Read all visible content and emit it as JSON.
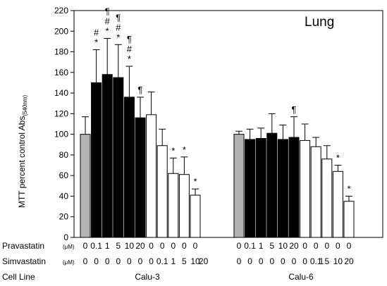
{
  "chart_data": {
    "type": "bar",
    "title": "Lung",
    "ylabel": "MTT percent control Abs",
    "ylabel_sub": "(540nm)",
    "ylim": [
      0,
      220
    ],
    "yticks": [
      0,
      20,
      40,
      60,
      80,
      100,
      120,
      140,
      160,
      180,
      200,
      220
    ],
    "grid": false,
    "row_labels": {
      "pravastatin": "Pravastatin",
      "simvastatin": "Simvastatin",
      "unit": "(μM)",
      "cell_line": "Cell Line"
    },
    "groups": [
      {
        "cell_line": "Calu-3",
        "bars": [
          {
            "pravastatin": "0",
            "simvastatin": "0",
            "value": 100,
            "error": 17,
            "kind": "control",
            "marks": []
          },
          {
            "pravastatin": "0.1",
            "simvastatin": "0",
            "value": 150,
            "error": 32,
            "kind": "pravastatin",
            "marks": [
              "#",
              "*"
            ]
          },
          {
            "pravastatin": "1",
            "simvastatin": "0",
            "value": 158,
            "error": 35,
            "kind": "pravastatin",
            "marks": [
              "¶",
              "#",
              "*"
            ]
          },
          {
            "pravastatin": "5",
            "simvastatin": "0",
            "value": 155,
            "error": 32,
            "kind": "pravastatin",
            "marks": [
              "¶",
              "#",
              "*"
            ]
          },
          {
            "pravastatin": "10",
            "simvastatin": "0",
            "value": 136,
            "error": 30,
            "kind": "pravastatin",
            "marks": [
              "¶",
              "#",
              "*"
            ]
          },
          {
            "pravastatin": "20",
            "simvastatin": "0",
            "value": 116,
            "error": 20,
            "kind": "pravastatin",
            "marks": [
              "¶"
            ]
          },
          {
            "pravastatin": "0",
            "simvastatin": "0",
            "value": 119,
            "error": 22,
            "kind": "simvastatin",
            "marks": []
          },
          {
            "pravastatin": "0",
            "simvastatin": "0.1",
            "value": 89,
            "error": 16,
            "kind": "simvastatin",
            "marks": []
          },
          {
            "pravastatin": "0",
            "simvastatin": "1",
            "value": 62,
            "error": 15,
            "kind": "simvastatin",
            "marks": [
              "*"
            ]
          },
          {
            "pravastatin": "0",
            "simvastatin": "5",
            "value": 61,
            "error": 17,
            "kind": "simvastatin",
            "marks": [
              "*"
            ]
          },
          {
            "pravastatin": "0",
            "simvastatin": "10",
            "value": 41,
            "error": 6,
            "kind": "simvastatin",
            "marks": [
              "*"
            ]
          }
        ],
        "extra_sim_labels": [
          "20"
        ]
      },
      {
        "cell_line": "Calu-6",
        "bars": [
          {
            "pravastatin": "0",
            "simvastatin": "0",
            "value": 100,
            "error": 3,
            "kind": "control",
            "marks": []
          },
          {
            "pravastatin": "0.1",
            "simvastatin": "0",
            "value": 95,
            "error": 10,
            "kind": "pravastatin",
            "marks": []
          },
          {
            "pravastatin": "1",
            "simvastatin": "0",
            "value": 96,
            "error": 10,
            "kind": "pravastatin",
            "marks": []
          },
          {
            "pravastatin": "5",
            "simvastatin": "0",
            "value": 101,
            "error": 19,
            "kind": "pravastatin",
            "marks": []
          },
          {
            "pravastatin": "10",
            "simvastatin": "0",
            "value": 95,
            "error": 14,
            "kind": "pravastatin",
            "marks": []
          },
          {
            "pravastatin": "20",
            "simvastatin": "0",
            "value": 97,
            "error": 20,
            "kind": "pravastatin",
            "marks": [
              "¶"
            ]
          },
          {
            "pravastatin": "0",
            "simvastatin": "0",
            "value": 94,
            "error": 16,
            "kind": "simvastatin",
            "marks": []
          },
          {
            "pravastatin": "0",
            "simvastatin": "0.1",
            "value": 88,
            "error": 9,
            "kind": "simvastatin",
            "marks": []
          },
          {
            "pravastatin": "0",
            "simvastatin": "5",
            "value": 76,
            "error": 13,
            "kind": "simvastatin",
            "marks": []
          },
          {
            "pravastatin": "0",
            "simvastatin": "10",
            "value": 64,
            "error": 6,
            "kind": "simvastatin",
            "marks": [
              "*"
            ]
          },
          {
            "pravastatin": "0",
            "simvastatin": "20",
            "value": 35,
            "error": 5,
            "kind": "simvastatin",
            "marks": [
              "*"
            ]
          }
        ],
        "extra_sim_labels": [
          "1"
        ]
      }
    ],
    "colors": {
      "control": "#b4b4b4",
      "pravastatin": "#000000",
      "simvastatin": "#ffffff",
      "outline": "#000000"
    }
  }
}
